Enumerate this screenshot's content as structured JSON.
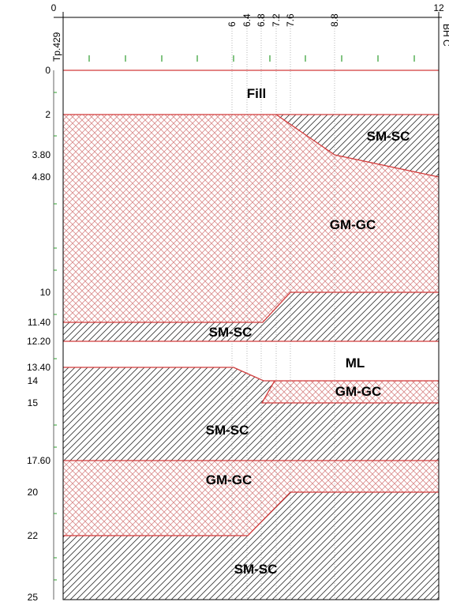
{
  "section": {
    "left_borehole": "Tp.429",
    "right_borehole": "BH C",
    "x_ticks": [
      "0",
      "6",
      "6.4",
      "6.8",
      "7.2",
      "7.6",
      "8.8",
      "12"
    ],
    "depth_ticks": [
      "0",
      "2",
      "3.80",
      "4.80",
      "10",
      "11.40",
      "12.20",
      "13.40",
      "14",
      "15",
      "17.60",
      "20",
      "22",
      "25"
    ]
  },
  "layers": [
    {
      "id": "fill",
      "label": "Fill",
      "type": "fill"
    },
    {
      "id": "smsc-top",
      "label": "SM-SC",
      "type": "sand"
    },
    {
      "id": "gmgc-upper",
      "label": "GM-GC",
      "type": "gravel"
    },
    {
      "id": "smsc-2",
      "label": "SM-SC",
      "type": "sand"
    },
    {
      "id": "ml",
      "label": "ML",
      "type": "silt"
    },
    {
      "id": "gmgc-lens",
      "label": "GM-GC",
      "type": "gravel"
    },
    {
      "id": "smsc-3",
      "label": "SM-SC",
      "type": "sand"
    },
    {
      "id": "gmgc-lower",
      "label": "GM-GC",
      "type": "gravel"
    },
    {
      "id": "smsc-bottom",
      "label": "SM-SC",
      "type": "sand"
    }
  ],
  "colors": {
    "boundary": "#d23a3a",
    "gravel_hatch": "#d98a8a",
    "sand_hatch": "#333333",
    "axis": "#000000",
    "tick": "#2e9c2e"
  }
}
